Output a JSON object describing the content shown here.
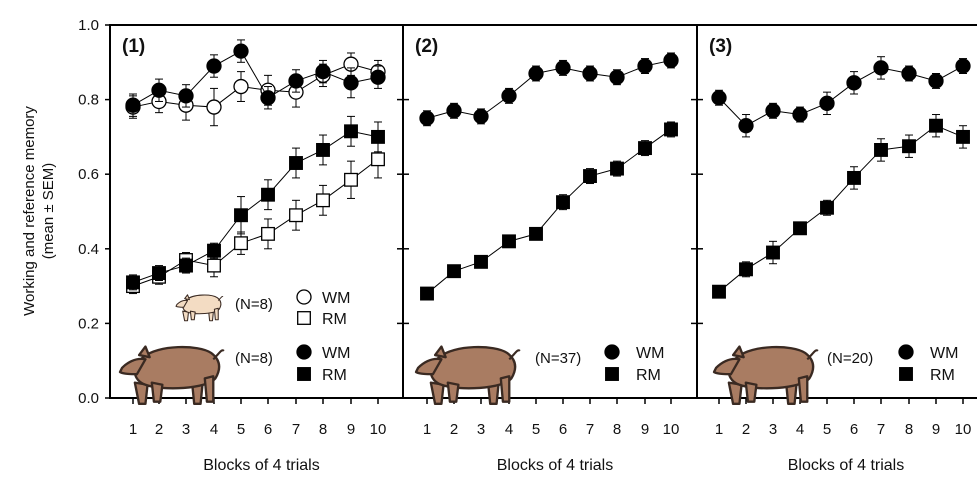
{
  "chart_data": {
    "type": "line",
    "ylabel": [
      "Working and reference memory",
      "(mean ± SEM)"
    ],
    "ylim": [
      0,
      1
    ],
    "y_ticks": [
      "0.0",
      "0.2",
      "0.4",
      "0.6",
      "0.8",
      "1.0"
    ],
    "x_ticks": [
      "1",
      "2",
      "3",
      "4",
      "5",
      "6",
      "7",
      "8",
      "9",
      "10"
    ],
    "xlabel": "Blocks of 4 trials",
    "grid": false,
    "colors": {
      "marker": "#000000",
      "pig_brown": "#a97c62",
      "piglet_pink": "#f3dcc3"
    },
    "panels": [
      {
        "label": "(1)",
        "series": [
          {
            "pig": "piglet",
            "marker": "circle-open",
            "error": [
              0.03,
              0.03,
              0.04,
              0.05,
              0.04,
              0.04,
              0.04,
              0.03,
              0.03,
              0.03
            ],
            "values": [
              0.78,
              0.795,
              0.785,
              0.78,
              0.835,
              0.825,
              0.82,
              0.865,
              0.895,
              0.875
            ]
          },
          {
            "pig": "piglet",
            "marker": "square-open",
            "error": [
              0.02,
              0.02,
              0.02,
              0.03,
              0.03,
              0.04,
              0.04,
              0.04,
              0.05,
              0.05
            ],
            "values": [
              0.3,
              0.325,
              0.37,
              0.355,
              0.415,
              0.44,
              0.49,
              0.53,
              0.585,
              0.64
            ]
          },
          {
            "pig": "adult",
            "marker": "circle-filled",
            "error": [
              0.03,
              0.03,
              0.03,
              0.03,
              0.03,
              0.03,
              0.03,
              0.03,
              0.04,
              0.03
            ],
            "values": [
              0.785,
              0.825,
              0.81,
              0.89,
              0.93,
              0.805,
              0.85,
              0.875,
              0.845,
              0.86
            ]
          },
          {
            "pig": "adult",
            "marker": "square-filled",
            "error": [
              0.02,
              0.02,
              0.02,
              0.02,
              0.05,
              0.04,
              0.04,
              0.04,
              0.04,
              0.04
            ],
            "values": [
              0.31,
              0.335,
              0.355,
              0.395,
              0.49,
              0.545,
              0.63,
              0.665,
              0.715,
              0.7
            ]
          }
        ],
        "legend": [
          {
            "pig": "piglet",
            "n": "(N=8)",
            "wm": "WM",
            "rm": "RM",
            "wm_marker": "circle-open",
            "rm_marker": "square-open"
          },
          {
            "pig": "adult",
            "n": "(N=8)",
            "wm": "WM",
            "rm": "RM",
            "wm_marker": "circle-filled",
            "rm_marker": "square-filled"
          }
        ]
      },
      {
        "label": "(2)",
        "series": [
          {
            "pig": "adult",
            "marker": "circle-filled",
            "error": [
              0.02,
              0.02,
              0.02,
              0.02,
              0.02,
              0.02,
              0.02,
              0.02,
              0.02,
              0.02
            ],
            "values": [
              0.75,
              0.77,
              0.755,
              0.81,
              0.87,
              0.885,
              0.87,
              0.86,
              0.89,
              0.905
            ]
          },
          {
            "pig": "adult",
            "marker": "square-filled",
            "error": [
              0.01,
              0.01,
              0.01,
              0.01,
              0.01,
              0.02,
              0.02,
              0.02,
              0.02,
              0.02
            ],
            "values": [
              0.28,
              0.34,
              0.365,
              0.42,
              0.44,
              0.525,
              0.595,
              0.615,
              0.67,
              0.72
            ]
          }
        ],
        "legend": [
          {
            "pig": "adult",
            "n": "(N=37)",
            "wm": "WM",
            "rm": "RM",
            "wm_marker": "circle-filled",
            "rm_marker": "square-filled"
          }
        ]
      },
      {
        "label": "(3)",
        "series": [
          {
            "pig": "adult",
            "marker": "circle-filled",
            "error": [
              0.02,
              0.03,
              0.02,
              0.02,
              0.03,
              0.03,
              0.03,
              0.02,
              0.02,
              0.02
            ],
            "values": [
              0.805,
              0.73,
              0.77,
              0.76,
              0.79,
              0.845,
              0.885,
              0.87,
              0.85,
              0.89
            ]
          },
          {
            "pig": "adult",
            "marker": "square-filled",
            "error": [
              0.01,
              0.02,
              0.03,
              0.01,
              0.02,
              0.03,
              0.03,
              0.03,
              0.03,
              0.03
            ],
            "values": [
              0.285,
              0.345,
              0.39,
              0.455,
              0.51,
              0.59,
              0.665,
              0.675,
              0.73,
              0.7
            ]
          }
        ],
        "legend": [
          {
            "pig": "adult",
            "n": "(N=20)",
            "wm": "WM",
            "rm": "RM",
            "wm_marker": "circle-filled",
            "rm_marker": "square-filled"
          }
        ]
      }
    ]
  }
}
